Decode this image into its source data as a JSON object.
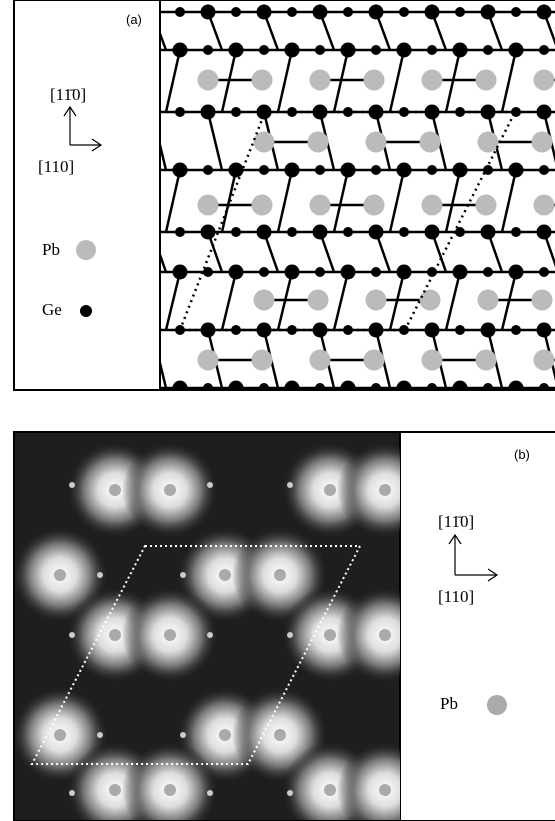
{
  "panel_a": {
    "label": "(a)",
    "axis_up": "[11̄0]",
    "axis_right": "[110]",
    "legend": [
      {
        "label": "Pb"
      },
      {
        "label": "Ge"
      }
    ]
  },
  "panel_b": {
    "label": "(b)",
    "axis_up": "[11̄0]",
    "axis_right": "[110]",
    "legend": [
      {
        "label": "Pb"
      }
    ]
  }
}
